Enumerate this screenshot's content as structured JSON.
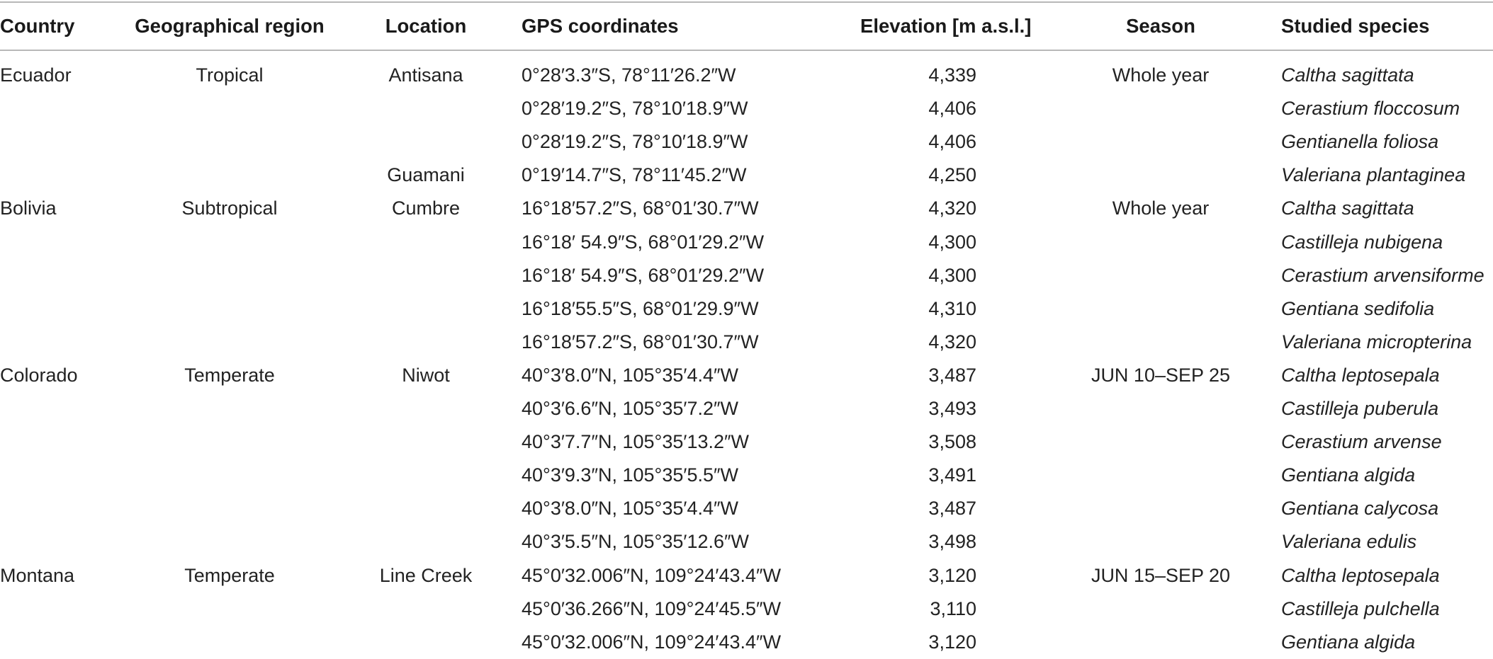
{
  "table": {
    "headers": {
      "country": "Country",
      "region": "Geographical region",
      "location": "Location",
      "gps": "GPS coordinates",
      "elevation": "Elevation [m a.s.l.]",
      "season": "Season",
      "species": "Studied species"
    },
    "rows": [
      {
        "country": "Ecuador",
        "region": "Tropical",
        "location": "Antisana",
        "gps": "0°28′3.3″S, 78°11′26.2″W",
        "elevation": "4,339",
        "season": "Whole year",
        "species": "Caltha sagittata"
      },
      {
        "country": "",
        "region": "",
        "location": "",
        "gps": "0°28′19.2″S, 78°10′18.9″W",
        "elevation": "4,406",
        "season": "",
        "species": "Cerastium floccosum"
      },
      {
        "country": "",
        "region": "",
        "location": "",
        "gps": "0°28′19.2″S, 78°10′18.9″W",
        "elevation": "4,406",
        "season": "",
        "species": "Gentianella foliosa"
      },
      {
        "country": "",
        "region": "",
        "location": "Guamani",
        "gps": "0°19′14.7″S, 78°11′45.2″W",
        "elevation": "4,250",
        "season": "",
        "species": "Valeriana plantaginea"
      },
      {
        "country": "Bolivia",
        "region": "Subtropical",
        "location": "Cumbre",
        "gps": "16°18′57.2″S, 68°01′30.7″W",
        "elevation": "4,320",
        "season": "Whole year",
        "species": "Caltha sagittata"
      },
      {
        "country": "",
        "region": "",
        "location": "",
        "gps": "16°18′ 54.9″S, 68°01′29.2″W",
        "elevation": "4,300",
        "season": "",
        "species": "Castilleja nubigena"
      },
      {
        "country": "",
        "region": "",
        "location": "",
        "gps": "16°18′ 54.9″S, 68°01′29.2″W",
        "elevation": "4,300",
        "season": "",
        "species": "Cerastium arvensiforme"
      },
      {
        "country": "",
        "region": "",
        "location": "",
        "gps": "16°18′55.5″S, 68°01′29.9″W",
        "elevation": "4,310",
        "season": "",
        "species": "Gentiana sedifolia"
      },
      {
        "country": "",
        "region": "",
        "location": "",
        "gps": "16°18′57.2″S, 68°01′30.7″W",
        "elevation": "4,320",
        "season": "",
        "species": "Valeriana micropterina"
      },
      {
        "country": "Colorado",
        "region": "Temperate",
        "location": "Niwot",
        "gps": "40°3′8.0″N, 105°35′4.4″W",
        "elevation": "3,487",
        "season": "JUN 10–SEP 25",
        "species": "Caltha leptosepala"
      },
      {
        "country": "",
        "region": "",
        "location": "",
        "gps": "40°3′6.6″N, 105°35′7.2″W",
        "elevation": "3,493",
        "season": "",
        "species": "Castilleja puberula"
      },
      {
        "country": "",
        "region": "",
        "location": "",
        "gps": "40°3′7.7″N, 105°35′13.2″W",
        "elevation": "3,508",
        "season": "",
        "species": "Cerastium arvense"
      },
      {
        "country": "",
        "region": "",
        "location": "",
        "gps": "40°3′9.3″N, 105°35′5.5″W",
        "elevation": "3,491",
        "season": "",
        "species": "Gentiana algida"
      },
      {
        "country": "",
        "region": "",
        "location": "",
        "gps": "40°3′8.0″N, 105°35′4.4″W",
        "elevation": "3,487",
        "season": "",
        "species": "Gentiana calycosa"
      },
      {
        "country": "",
        "region": "",
        "location": "",
        "gps": "40°3′5.5″N, 105°35′12.6″W",
        "elevation": "3,498",
        "season": "",
        "species": "Valeriana edulis"
      },
      {
        "country": "Montana",
        "region": "Temperate",
        "location": "Line Creek",
        "gps": "45°0′32.006″N, 109°24′43.4″W",
        "elevation": "3,120",
        "season": "JUN 15–SEP 20",
        "species": "Caltha leptosepala"
      },
      {
        "country": "",
        "region": "",
        "location": "",
        "gps": "45°0′36.266″N, 109°24′45.5″W",
        "elevation": "3,110",
        "season": "",
        "species": "Castilleja pulchella"
      },
      {
        "country": "",
        "region": "",
        "location": "",
        "gps": "45°0′32.006″N, 109°24′43.4″W",
        "elevation": "3,120",
        "season": "",
        "species": "Gentiana algida"
      }
    ]
  }
}
